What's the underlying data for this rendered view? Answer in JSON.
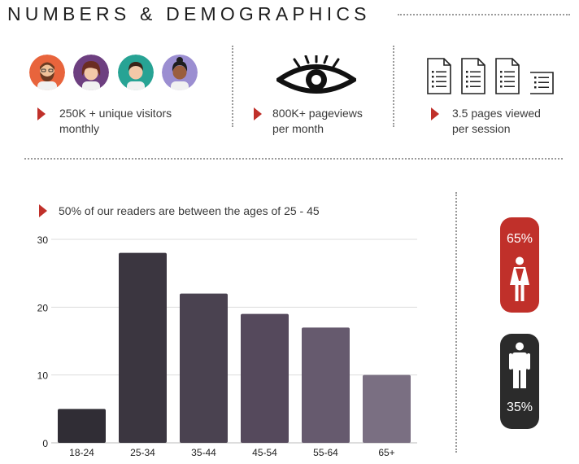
{
  "header": {
    "title": "NUMBERS & DEMOGRAPHICS"
  },
  "stats": [
    {
      "line1": "250K + unique visitors",
      "line2": "monthly"
    },
    {
      "line1": "800K+ pageviews",
      "line2": "per month"
    },
    {
      "line1": "3.5 pages viewed",
      "line2": "per session"
    }
  ],
  "chart_caption": "50% of our readers are between the ages of 25 - 45",
  "chart_data": {
    "type": "bar",
    "categories": [
      "18-24",
      "25-34",
      "35-44",
      "45-54",
      "55-64",
      "65+"
    ],
    "values": [
      5,
      28,
      22,
      19,
      17,
      10
    ],
    "ylim": [
      0,
      30
    ],
    "yticks": [
      0,
      10,
      20,
      30
    ],
    "grid": true,
    "colors": [
      "#302d35",
      "#3b3640",
      "#4a4250",
      "#55495c",
      "#665a6e",
      "#7a6f82"
    ]
  },
  "gender": {
    "female": {
      "percent": "65%",
      "color": "#c0302a",
      "icon": "female-figure-icon"
    },
    "male": {
      "percent": "35%",
      "color": "#2b2b2b",
      "icon": "male-figure-icon"
    }
  },
  "colors": {
    "accent": "#c0302a",
    "text": "#333333"
  }
}
